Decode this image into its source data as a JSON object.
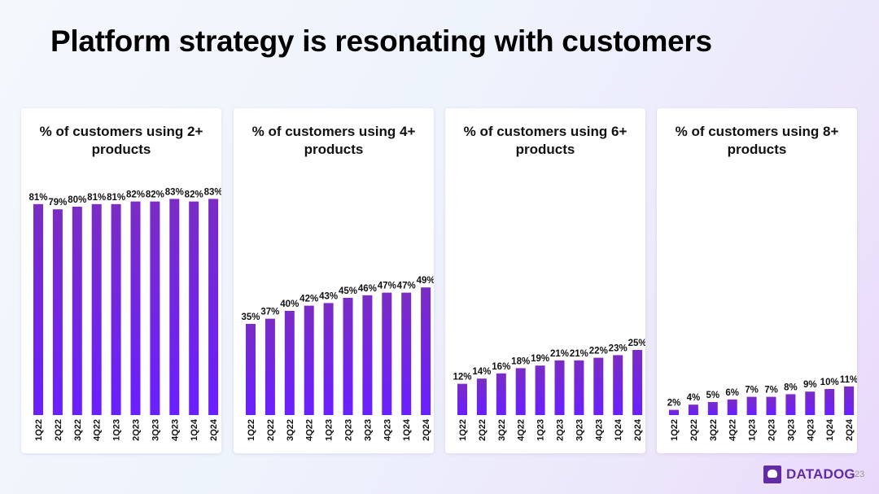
{
  "title": "Platform strategy is resonating with customers",
  "colors": {
    "bar_top": "#7a2cc4",
    "bar_bottom": "#6a1fff",
    "logo": "#632ca6"
  },
  "footer": {
    "logo_text": "DATADOG",
    "page_number": "23"
  },
  "chart_data": [
    {
      "type": "bar",
      "title": "% of customers using 2+ products",
      "categories": [
        "1Q22",
        "2Q22",
        "3Q22",
        "4Q22",
        "1Q23",
        "2Q23",
        "3Q23",
        "4Q23",
        "1Q24",
        "2Q24"
      ],
      "values": [
        81,
        79,
        80,
        81,
        81,
        82,
        82,
        83,
        82,
        83
      ],
      "data_labels": [
        "81%",
        "79%",
        "80%",
        "81%",
        "81%",
        "82%",
        "82%",
        "83%",
        "82%",
        "83%"
      ],
      "ylim": [
        0,
        85
      ],
      "grid": false
    },
    {
      "type": "bar",
      "title": "% of customers using 4+ products",
      "categories": [
        "1Q22",
        "2Q22",
        "3Q22",
        "4Q22",
        "1Q23",
        "2Q23",
        "3Q23",
        "4Q23",
        "1Q24",
        "2Q24"
      ],
      "values": [
        35,
        37,
        40,
        42,
        43,
        45,
        46,
        47,
        47,
        49
      ],
      "data_labels": [
        "35%",
        "37%",
        "40%",
        "42%",
        "43%",
        "45%",
        "46%",
        "47%",
        "47%",
        "49%"
      ],
      "ylim": [
        0,
        85
      ],
      "grid": false
    },
    {
      "type": "bar",
      "title": "% of customers using 6+ products",
      "categories": [
        "1Q22",
        "2Q22",
        "3Q22",
        "4Q22",
        "1Q23",
        "2Q23",
        "3Q23",
        "4Q23",
        "1Q24",
        "2Q24"
      ],
      "values": [
        12,
        14,
        16,
        18,
        19,
        21,
        21,
        22,
        23,
        25
      ],
      "data_labels": [
        "12%",
        "14%",
        "16%",
        "18%",
        "19%",
        "21%",
        "21%",
        "22%",
        "23%",
        "25%"
      ],
      "ylim": [
        0,
        85
      ],
      "grid": false
    },
    {
      "type": "bar",
      "title": "% of customers using 8+ products",
      "categories": [
        "1Q22",
        "2Q22",
        "3Q22",
        "4Q22",
        "1Q23",
        "2Q23",
        "3Q23",
        "4Q23",
        "1Q24",
        "2Q24"
      ],
      "values": [
        2,
        4,
        5,
        6,
        7,
        7,
        8,
        9,
        10,
        11
      ],
      "data_labels": [
        "2%",
        "4%",
        "5%",
        "6%",
        "7%",
        "7%",
        "8%",
        "9%",
        "10%",
        "11%"
      ],
      "ylim": [
        0,
        85
      ],
      "grid": false
    }
  ]
}
